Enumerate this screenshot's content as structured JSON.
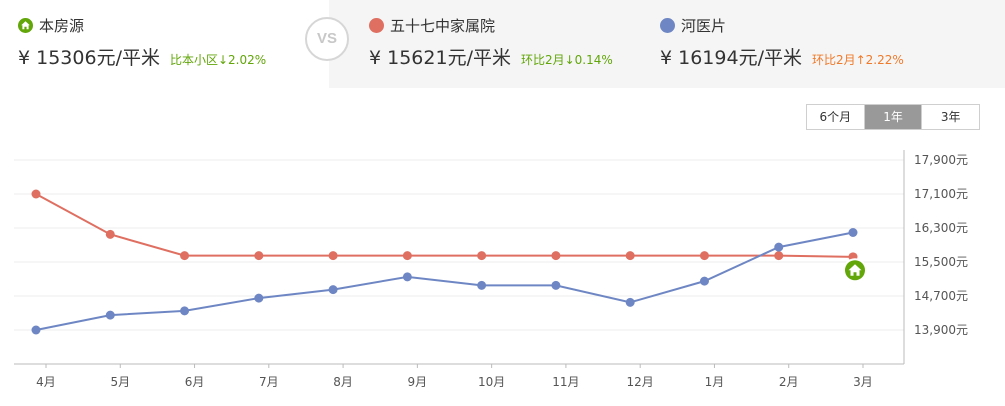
{
  "header": {
    "vs_label": "VS",
    "own": {
      "name": "本房源",
      "price": "¥ 15306元/平米",
      "change": "比本小区↓2.02%",
      "color": "#62a60a"
    },
    "compare1": {
      "name": "五十七中家属院",
      "price": "¥ 15621元/平米",
      "change": "环比2月↓0.14%",
      "dot_color": "#df6f61",
      "change_color": "#62a60a"
    },
    "compare2": {
      "name": "河医片",
      "price": "¥ 16194元/平米",
      "change": "环比2月↑2.22%",
      "dot_color": "#6e87c4",
      "change_color": "#f07a2a"
    }
  },
  "range_tabs": [
    {
      "label": "6个月",
      "active": false
    },
    {
      "label": "1年",
      "active": true
    },
    {
      "label": "3年",
      "active": false
    }
  ],
  "chart_data": {
    "type": "line",
    "categories": [
      "4月",
      "5月",
      "6月",
      "7月",
      "8月",
      "9月",
      "10月",
      "11月",
      "12月",
      "1月",
      "2月",
      "3月"
    ],
    "series": [
      {
        "name": "五十七中家属院",
        "color": "#df6f61",
        "values": [
          17100,
          16150,
          15650,
          15650,
          15650,
          15650,
          15650,
          15650,
          15650,
          15650,
          15650,
          15621
        ]
      },
      {
        "name": "河医片",
        "color": "#6e87c4",
        "values": [
          13900,
          14250,
          14350,
          14650,
          14850,
          15150,
          14950,
          14950,
          14550,
          15050,
          15850,
          16194
        ]
      }
    ],
    "own_marker": {
      "category": "3月",
      "value": 15306,
      "color": "#62a60a",
      "icon": "home-icon"
    },
    "y_ticks": [
      "13,900元",
      "14,700元",
      "15,500元",
      "16,300元",
      "17,100元",
      "17,900元"
    ],
    "y_tick_values": [
      13900,
      14700,
      15500,
      16300,
      17100,
      17900
    ],
    "ylim": [
      13100,
      17900
    ],
    "grid": true
  }
}
